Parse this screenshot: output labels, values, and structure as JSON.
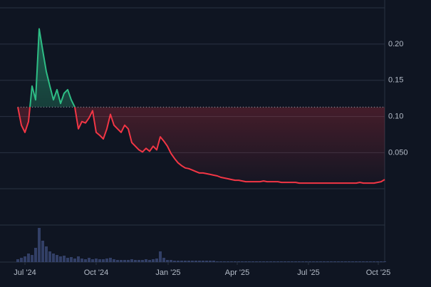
{
  "chart_data": {
    "type": "line",
    "values": [
      0.113,
      0.088,
      0.078,
      0.093,
      0.142,
      0.123,
      0.221,
      0.191,
      0.162,
      0.142,
      0.123,
      0.137,
      0.118,
      0.132,
      0.137,
      0.123,
      0.113,
      0.083,
      0.093,
      0.091,
      0.098,
      0.108,
      0.078,
      0.074,
      0.069,
      0.083,
      0.103,
      0.088,
      0.083,
      0.078,
      0.088,
      0.083,
      0.064,
      0.059,
      0.054,
      0.051,
      0.056,
      0.052,
      0.059,
      0.054,
      0.072,
      0.066,
      0.059,
      0.049,
      0.042,
      0.036,
      0.032,
      0.029,
      0.028,
      0.026,
      0.024,
      0.022,
      0.022,
      0.021,
      0.02,
      0.019,
      0.018,
      0.016,
      0.015,
      0.014,
      0.013,
      0.012,
      0.012,
      0.011,
      0.01,
      0.01,
      0.01,
      0.01,
      0.01,
      0.011,
      0.01,
      0.01,
      0.01,
      0.01,
      0.009,
      0.009,
      0.009,
      0.009,
      0.009,
      0.008,
      0.008,
      0.008,
      0.008,
      0.008,
      0.008,
      0.008,
      0.008,
      0.008,
      0.008,
      0.008,
      0.008,
      0.008,
      0.008,
      0.008,
      0.008,
      0.008,
      0.009,
      0.008,
      0.008,
      0.008,
      0.008,
      0.009,
      0.01,
      0.013
    ],
    "volume": [
      4,
      6,
      8,
      12,
      10,
      20,
      48,
      30,
      22,
      15,
      12,
      10,
      8,
      9,
      6,
      7,
      5,
      8,
      5,
      4,
      6,
      4,
      5,
      4,
      4,
      5,
      6,
      4,
      3,
      3,
      3,
      3,
      4,
      3,
      3,
      3,
      4,
      3,
      4,
      5,
      15,
      6,
      3,
      3,
      2,
      2,
      2,
      2,
      2,
      2,
      2,
      2,
      2,
      2,
      2,
      2,
      1,
      1,
      1,
      1,
      1,
      1,
      1,
      1,
      1,
      1,
      1,
      1,
      1,
      1,
      1,
      1,
      1,
      1,
      1,
      1,
      1,
      1,
      1,
      1,
      1,
      1,
      1,
      1,
      1,
      1,
      1,
      1,
      1,
      1,
      1,
      1,
      1,
      1,
      1,
      1,
      1,
      1,
      1,
      1,
      1,
      1,
      1,
      1
    ],
    "baseline": 0.113,
    "up_color": "#2ebd85",
    "down_color": "#f23645",
    "volume_color": "#3b4a78",
    "xlim": [
      0,
      103
    ],
    "xticks": [
      {
        "value": 2,
        "label": "Jul '24"
      },
      {
        "value": 22,
        "label": "Oct '24"
      },
      {
        "value": 42.2,
        "label": "Jan '25"
      },
      {
        "value": 61.6,
        "label": "Apr '25"
      },
      {
        "value": 81.6,
        "label": "Jul '25"
      },
      {
        "value": 101.2,
        "label": "Oct '25"
      }
    ],
    "ylim": [
      -0.1,
      0.25
    ],
    "yticks": [
      {
        "value": 0.05,
        "label": "0.050"
      },
      {
        "value": 0.1,
        "label": "0.10"
      },
      0.15,
      {
        "value": 0.2,
        "label": "0.20"
      }
    ],
    "vlim": [
      0,
      50
    ],
    "grid": true
  }
}
